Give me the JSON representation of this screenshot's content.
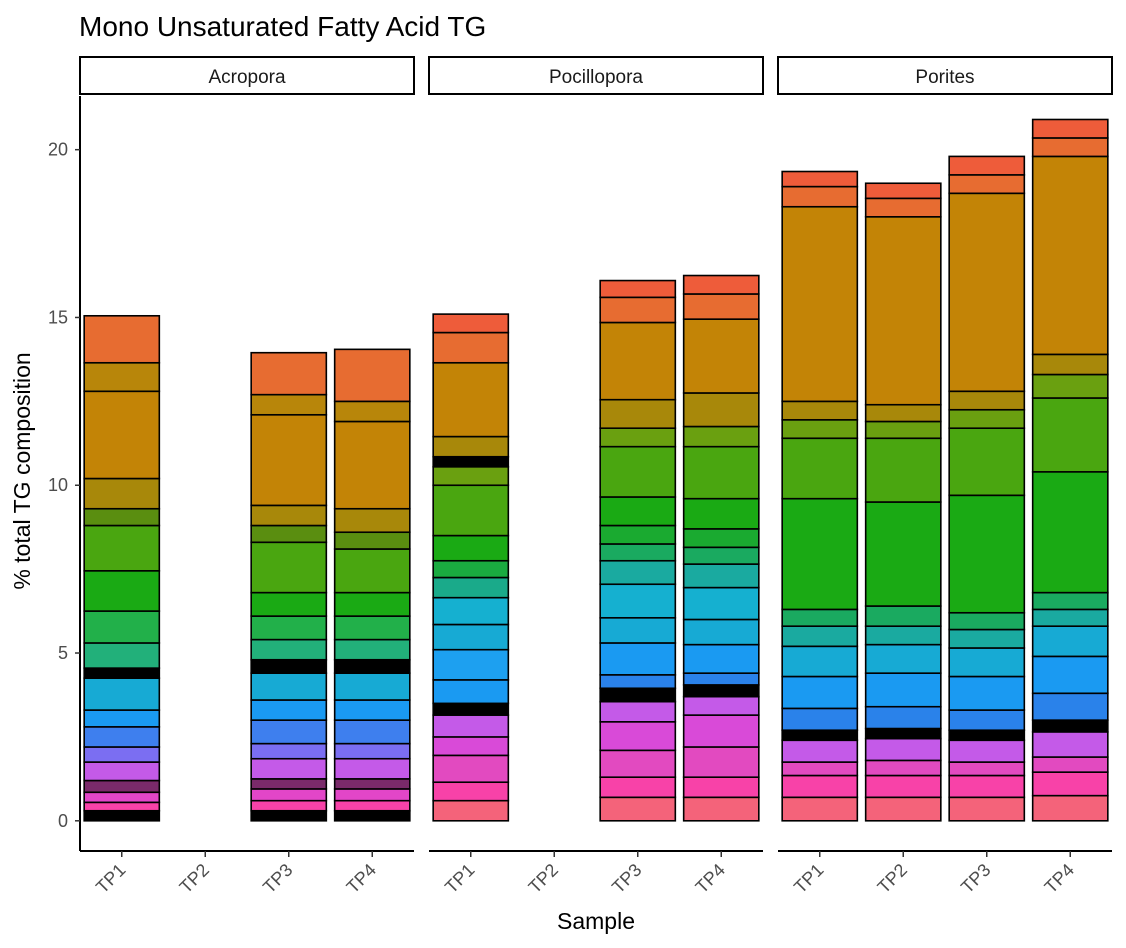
{
  "chart_data": {
    "type": "bar",
    "stacked": true,
    "title": "Mono Unsaturated Fatty Acid TG",
    "xlabel": "Sample",
    "ylabel": "% total TG composition",
    "ylim": [
      -0.9,
      21.6
    ],
    "yticks": [
      "0",
      "5",
      "10",
      "15",
      "20"
    ],
    "ytick_values": [
      0,
      5,
      10,
      15,
      20
    ],
    "grid": false,
    "legend": "none",
    "bar_outline_color": "#000000",
    "facets": [
      {
        "label": "Acropora",
        "categories": [
          "TP1",
          "TP2",
          "TP3",
          "TP4"
        ],
        "stacks": [
          [
            [
              0.3,
              "#000000"
            ],
            [
              0.25,
              "#f842a8"
            ],
            [
              0.3,
              "#e246c8"
            ],
            [
              0.35,
              "#7a2a6a"
            ],
            [
              0.55,
              "#c45ae8"
            ],
            [
              0.45,
              "#7b6ef2"
            ],
            [
              0.6,
              "#3e7fee"
            ],
            [
              0.5,
              "#1a9af2"
            ],
            [
              0.95,
              "#17aad4"
            ],
            [
              0.3,
              "#000000"
            ],
            [
              0.75,
              "#22b07a"
            ],
            [
              0.95,
              "#22b04a"
            ],
            [
              1.2,
              "#1aaa14"
            ],
            [
              1.35,
              "#4aa610"
            ],
            [
              0.5,
              "#5a8e10"
            ],
            [
              0.9,
              "#a8880a"
            ],
            [
              2.6,
              "#c38406"
            ],
            [
              0.85,
              "#b8860a"
            ],
            [
              1.4,
              "#e76c31"
            ]
          ],
          [],
          [
            [
              0.3,
              "#000000"
            ],
            [
              0.3,
              "#f842a8"
            ],
            [
              0.35,
              "#e246c8"
            ],
            [
              0.3,
              "#7a2a6a"
            ],
            [
              0.6,
              "#c45ae8"
            ],
            [
              0.45,
              "#7b6ef2"
            ],
            [
              0.7,
              "#3e7fee"
            ],
            [
              0.6,
              "#1a9af2"
            ],
            [
              0.8,
              "#17aad4"
            ],
            [
              0.4,
              "#000000"
            ],
            [
              0.6,
              "#22b07a"
            ],
            [
              0.7,
              "#22b04a"
            ],
            [
              0.7,
              "#1aaa14"
            ],
            [
              1.5,
              "#4aa610"
            ],
            [
              0.5,
              "#5a8e10"
            ],
            [
              0.6,
              "#a8880a"
            ],
            [
              2.7,
              "#c38406"
            ],
            [
              0.6,
              "#b8860a"
            ],
            [
              1.25,
              "#e76c31"
            ]
          ],
          [
            [
              0.3,
              "#000000"
            ],
            [
              0.3,
              "#f842a8"
            ],
            [
              0.35,
              "#e246c8"
            ],
            [
              0.3,
              "#7a2a6a"
            ],
            [
              0.6,
              "#c45ae8"
            ],
            [
              0.45,
              "#7b6ef2"
            ],
            [
              0.7,
              "#3e7fee"
            ],
            [
              0.6,
              "#1a9af2"
            ],
            [
              0.8,
              "#17aad4"
            ],
            [
              0.4,
              "#000000"
            ],
            [
              0.6,
              "#22b07a"
            ],
            [
              0.7,
              "#22b04a"
            ],
            [
              0.7,
              "#1aaa14"
            ],
            [
              1.3,
              "#4aa610"
            ],
            [
              0.5,
              "#5a8e10"
            ],
            [
              0.7,
              "#a8880a"
            ],
            [
              2.6,
              "#c38406"
            ],
            [
              0.6,
              "#b8860a"
            ],
            [
              1.55,
              "#e76c31"
            ]
          ]
        ]
      },
      {
        "label": "Pocillopora",
        "categories": [
          "TP1",
          "TP2",
          "TP3",
          "TP4"
        ],
        "stacks": [
          [
            [
              0.6,
              "#f4637a"
            ],
            [
              0.55,
              "#f842a8"
            ],
            [
              0.8,
              "#e24ac0"
            ],
            [
              0.55,
              "#d94ad8"
            ],
            [
              0.65,
              "#c45ae8"
            ],
            [
              0.35,
              "#000000"
            ],
            [
              0.7,
              "#1a9af2"
            ],
            [
              0.9,
              "#1da0f0"
            ],
            [
              0.75,
              "#17aad4"
            ],
            [
              0.8,
              "#15b0d0"
            ],
            [
              0.6,
              "#1aaa8a"
            ],
            [
              0.5,
              "#1aaa40"
            ],
            [
              0.75,
              "#1aaa14"
            ],
            [
              1.5,
              "#4aa610"
            ],
            [
              0.55,
              "#6aa010"
            ],
            [
              0.3,
              "#000000"
            ],
            [
              0.6,
              "#a8880a"
            ],
            [
              2.2,
              "#c38406"
            ],
            [
              0.9,
              "#e76c31"
            ],
            [
              0.55,
              "#ee5c3a"
            ]
          ],
          [],
          [
            [
              0.7,
              "#f4637a"
            ],
            [
              0.6,
              "#f842a8"
            ],
            [
              0.8,
              "#e24ac0"
            ],
            [
              0.85,
              "#d94ad8"
            ],
            [
              0.6,
              "#c45ae8"
            ],
            [
              0.4,
              "#000000"
            ],
            [
              0.4,
              "#2a82ea"
            ],
            [
              0.95,
              "#1a9af2"
            ],
            [
              0.75,
              "#17aad4"
            ],
            [
              1.0,
              "#15b0d0"
            ],
            [
              0.7,
              "#1aaaa0"
            ],
            [
              0.5,
              "#1aaa60"
            ],
            [
              0.55,
              "#1aaa30"
            ],
            [
              0.85,
              "#1aaa14"
            ],
            [
              1.5,
              "#4aa610"
            ],
            [
              0.55,
              "#6aa010"
            ],
            [
              0.85,
              "#a8880a"
            ],
            [
              2.3,
              "#c38406"
            ],
            [
              0.75,
              "#e76c31"
            ],
            [
              0.5,
              "#ee5c3a"
            ]
          ],
          [
            [
              0.7,
              "#f4637a"
            ],
            [
              0.6,
              "#f842a8"
            ],
            [
              0.9,
              "#e24ac0"
            ],
            [
              0.95,
              "#d94ad8"
            ],
            [
              0.55,
              "#c45ae8"
            ],
            [
              0.35,
              "#000000"
            ],
            [
              0.35,
              "#2a82ea"
            ],
            [
              0.85,
              "#1a9af2"
            ],
            [
              0.75,
              "#17aad4"
            ],
            [
              0.95,
              "#15b0d0"
            ],
            [
              0.7,
              "#1aaaa0"
            ],
            [
              0.5,
              "#1aaa60"
            ],
            [
              0.55,
              "#1aaa30"
            ],
            [
              0.9,
              "#1aaa14"
            ],
            [
              1.55,
              "#4aa610"
            ],
            [
              0.6,
              "#6aa010"
            ],
            [
              1.0,
              "#a8880a"
            ],
            [
              2.2,
              "#c38406"
            ],
            [
              0.75,
              "#e76c31"
            ],
            [
              0.55,
              "#ee5c3a"
            ]
          ]
        ]
      },
      {
        "label": "Porites",
        "categories": [
          "TP1",
          "TP2",
          "TP3",
          "TP4"
        ],
        "stacks": [
          [
            [
              0.7,
              "#f4637a"
            ],
            [
              0.65,
              "#f842a8"
            ],
            [
              0.4,
              "#e24ac0"
            ],
            [
              0.65,
              "#c45ae8"
            ],
            [
              0.3,
              "#000000"
            ],
            [
              0.65,
              "#2a82ea"
            ],
            [
              0.95,
              "#1a9af2"
            ],
            [
              0.9,
              "#17aad4"
            ],
            [
              0.6,
              "#1aaaa0"
            ],
            [
              0.5,
              "#1aaa60"
            ],
            [
              3.3,
              "#1aaa14"
            ],
            [
              1.8,
              "#4aa610"
            ],
            [
              0.55,
              "#6aa010"
            ],
            [
              0.55,
              "#a8880a"
            ],
            [
              5.8,
              "#c38406"
            ],
            [
              0.6,
              "#e76c31"
            ],
            [
              0.45,
              "#ee5c3a"
            ]
          ],
          [
            [
              0.7,
              "#f4637a"
            ],
            [
              0.65,
              "#f842a8"
            ],
            [
              0.45,
              "#e24ac0"
            ],
            [
              0.65,
              "#c45ae8"
            ],
            [
              0.3,
              "#000000"
            ],
            [
              0.65,
              "#2a82ea"
            ],
            [
              1.0,
              "#1a9af2"
            ],
            [
              0.85,
              "#17aad4"
            ],
            [
              0.55,
              "#1aaaa0"
            ],
            [
              0.6,
              "#1aaa60"
            ],
            [
              3.1,
              "#1aaa14"
            ],
            [
              1.9,
              "#4aa610"
            ],
            [
              0.5,
              "#6aa010"
            ],
            [
              0.5,
              "#a8880a"
            ],
            [
              5.6,
              "#c38406"
            ],
            [
              0.55,
              "#e76c31"
            ],
            [
              0.45,
              "#ee5c3a"
            ]
          ],
          [
            [
              0.7,
              "#f4637a"
            ],
            [
              0.65,
              "#f842a8"
            ],
            [
              0.4,
              "#e24ac0"
            ],
            [
              0.65,
              "#c45ae8"
            ],
            [
              0.3,
              "#000000"
            ],
            [
              0.6,
              "#2a82ea"
            ],
            [
              1.0,
              "#1a9af2"
            ],
            [
              0.85,
              "#17aad4"
            ],
            [
              0.55,
              "#1aaaa0"
            ],
            [
              0.5,
              "#1aaa60"
            ],
            [
              3.5,
              "#1aaa14"
            ],
            [
              2.0,
              "#4aa610"
            ],
            [
              0.55,
              "#6aa010"
            ],
            [
              0.55,
              "#a8880a"
            ],
            [
              5.9,
              "#c38406"
            ],
            [
              0.55,
              "#e76c31"
            ],
            [
              0.55,
              "#ee5c3a"
            ]
          ],
          [
            [
              0.75,
              "#f4637a"
            ],
            [
              0.7,
              "#f842a8"
            ],
            [
              0.45,
              "#e24ac0"
            ],
            [
              0.75,
              "#c45ae8"
            ],
            [
              0.35,
              "#000000"
            ],
            [
              0.8,
              "#2a82ea"
            ],
            [
              1.1,
              "#1a9af2"
            ],
            [
              0.9,
              "#17aad4"
            ],
            [
              0.5,
              "#1aaaa0"
            ],
            [
              0.5,
              "#1aaa60"
            ],
            [
              3.6,
              "#1aaa14"
            ],
            [
              2.2,
              "#4aa610"
            ],
            [
              0.7,
              "#6aa010"
            ],
            [
              0.6,
              "#a8880a"
            ],
            [
              5.9,
              "#c38406"
            ],
            [
              0.55,
              "#e76c31"
            ],
            [
              0.55,
              "#ee5c3a"
            ]
          ]
        ]
      }
    ]
  }
}
